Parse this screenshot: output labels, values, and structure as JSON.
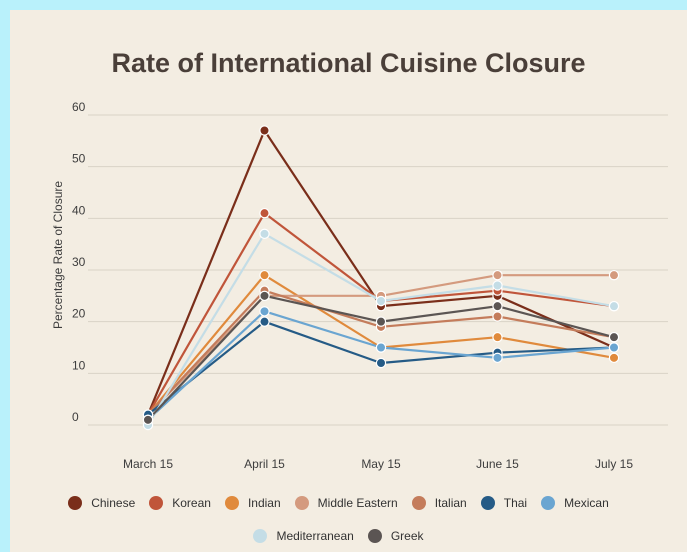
{
  "chart_data": {
    "type": "line",
    "title": "Rate of International Cuisine Closure",
    "xlabel": "",
    "ylabel": "Percentage Rate of Closure",
    "categories": [
      "March 15",
      "April 15",
      "May 15",
      "June 15",
      "July 15"
    ],
    "ylim": [
      0,
      60
    ],
    "yticks": [
      0,
      10,
      20,
      30,
      40,
      50,
      60
    ],
    "grid": true,
    "legend_position": "bottom",
    "series": [
      {
        "name": "Chinese",
        "color": "#7a2e1a",
        "values": [
          2,
          57,
          23,
          25,
          15
        ]
      },
      {
        "name": "Korean",
        "color": "#c0553a",
        "values": [
          2,
          41,
          24,
          26,
          23
        ]
      },
      {
        "name": "Indian",
        "color": "#e08a3c",
        "values": [
          2,
          29,
          15,
          17,
          13
        ]
      },
      {
        "name": "Middle Eastern",
        "color": "#d49a7e",
        "values": [
          2,
          25,
          25,
          29,
          29
        ]
      },
      {
        "name": "Italian",
        "color": "#c47c5b",
        "values": [
          2,
          26,
          19,
          21,
          17
        ]
      },
      {
        "name": "Thai",
        "color": "#255b86",
        "values": [
          2,
          20,
          12,
          14,
          15
        ]
      },
      {
        "name": "Mexican",
        "color": "#6aa5d1",
        "values": [
          1,
          22,
          15,
          13,
          15
        ]
      },
      {
        "name": "Mediterranean",
        "color": "#c4dde6",
        "values": [
          0,
          37,
          24,
          27,
          23
        ]
      },
      {
        "name": "Greek",
        "color": "#5b5553",
        "values": [
          1,
          25,
          20,
          23,
          17
        ]
      }
    ]
  }
}
